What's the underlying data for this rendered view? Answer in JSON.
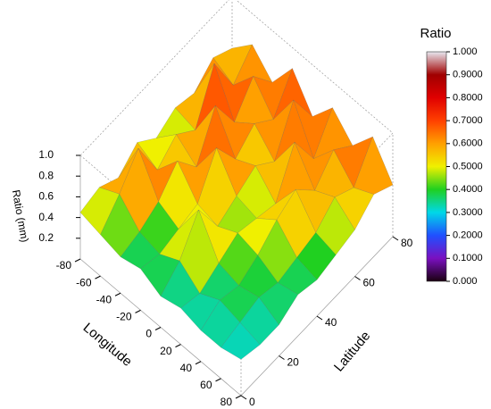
{
  "chart_data": {
    "type": "surface3d",
    "x_label": "Longitude",
    "y_label": "Latitude",
    "z_label": "Ratio (mm)",
    "colorbar_title": "Ratio",
    "x": [
      -80,
      -60,
      -40,
      -20,
      0,
      20,
      40,
      60,
      80
    ],
    "y": [
      0,
      10,
      20,
      30,
      40,
      50,
      60,
      70,
      80
    ],
    "z": [
      [
        0.45,
        0.4,
        0.35,
        0.4,
        0.3,
        0.35,
        0.3,
        0.3,
        0.35
      ],
      [
        0.5,
        0.6,
        0.4,
        0.35,
        0.45,
        0.3,
        0.4,
        0.35,
        0.3
      ],
      [
        0.4,
        0.85,
        0.5,
        0.4,
        0.75,
        0.4,
        0.35,
        0.4,
        0.3
      ],
      [
        0.55,
        0.45,
        0.7,
        0.45,
        0.4,
        0.5,
        0.45,
        0.35,
        0.4
      ],
      [
        0.4,
        0.6,
        0.45,
        0.8,
        0.5,
        0.45,
        0.6,
        0.4,
        0.35
      ],
      [
        0.5,
        0.45,
        0.85,
        0.5,
        0.6,
        0.4,
        0.7,
        0.45,
        0.4
      ],
      [
        0.45,
        0.9,
        0.5,
        0.65,
        0.45,
        0.8,
        0.5,
        0.6,
        0.45
      ],
      [
        0.6,
        0.5,
        0.75,
        0.5,
        0.85,
        0.45,
        0.7,
        0.5,
        0.6
      ],
      [
        0.5,
        0.7,
        0.5,
        0.8,
        0.5,
        0.75,
        0.55,
        0.8,
        0.5
      ]
    ],
    "xlim": [
      -80,
      80
    ],
    "ylim": [
      0,
      80
    ],
    "zlim": [
      0,
      1
    ],
    "xticks": [
      -80,
      -60,
      -40,
      -20,
      0,
      20,
      40,
      60,
      80
    ],
    "yticks": [
      0,
      20,
      40,
      60,
      80
    ],
    "zticks": [
      {
        "value": 0.2,
        "label": "0.2"
      },
      {
        "value": 0.4,
        "label": "0.4"
      },
      {
        "value": 0.6,
        "label": "0.6"
      },
      {
        "value": 0.8,
        "label": "0.8"
      },
      {
        "value": 1,
        "label": "1.0"
      }
    ],
    "clim": [
      0,
      1
    ],
    "cticks": [
      {
        "value": 0,
        "label": "0.000"
      },
      {
        "value": 0.1,
        "label": "0.1000"
      },
      {
        "value": 0.2,
        "label": "0.2000"
      },
      {
        "value": 0.3,
        "label": "0.3000"
      },
      {
        "value": 0.4,
        "label": "0.4000"
      },
      {
        "value": 0.5,
        "label": "0.5000"
      },
      {
        "value": 0.6,
        "label": "0.6000"
      },
      {
        "value": 0.7,
        "label": "0.7000"
      },
      {
        "value": 0.8,
        "label": "0.8000"
      },
      {
        "value": 0.9,
        "label": "0.9000"
      },
      {
        "value": 1,
        "label": "1.000"
      }
    ],
    "colors": [
      "#1a0010",
      "#7a10c0",
      "#2050ff",
      "#00d8e8",
      "#20d020",
      "#f0f000",
      "#ffa000",
      "#ff4000",
      "#e00000",
      "#a00000",
      "#e8e8f0"
    ]
  }
}
